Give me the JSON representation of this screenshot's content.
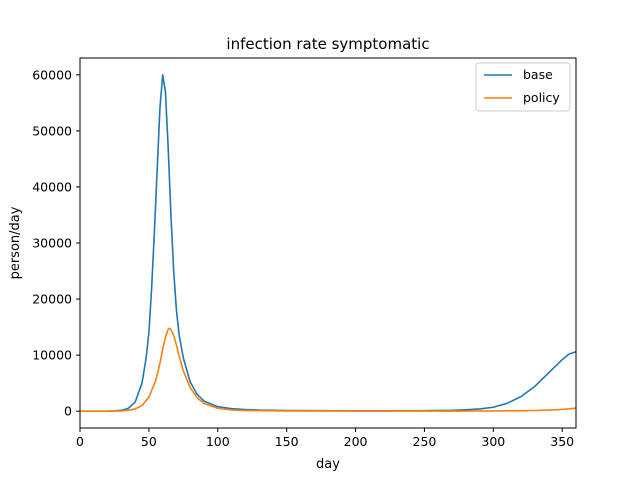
{
  "chart_data": {
    "type": "line",
    "title": "infection rate symptomatic",
    "xlabel": "day",
    "ylabel": "person/day",
    "xlim": [
      0,
      360
    ],
    "ylim": [
      -3000,
      63000
    ],
    "xticks": [
      0,
      50,
      100,
      150,
      200,
      250,
      300,
      350
    ],
    "yticks": [
      0,
      10000,
      20000,
      30000,
      40000,
      50000,
      60000
    ],
    "grid": false,
    "legend_position": "top-right",
    "series": [
      {
        "name": "base",
        "color": "#1f77b4",
        "points": [
          [
            0,
            0
          ],
          [
            10,
            0
          ],
          [
            20,
            10
          ],
          [
            25,
            40
          ],
          [
            30,
            150
          ],
          [
            35,
            500
          ],
          [
            40,
            1600
          ],
          [
            45,
            5000
          ],
          [
            48,
            9500
          ],
          [
            50,
            14000
          ],
          [
            52,
            22000
          ],
          [
            54,
            32000
          ],
          [
            56,
            43000
          ],
          [
            58,
            54000
          ],
          [
            60,
            60000
          ],
          [
            62,
            57000
          ],
          [
            64,
            47000
          ],
          [
            66,
            35000
          ],
          [
            68,
            25000
          ],
          [
            70,
            18000
          ],
          [
            72,
            13500
          ],
          [
            75,
            9500
          ],
          [
            80,
            5200
          ],
          [
            85,
            3000
          ],
          [
            90,
            1800
          ],
          [
            100,
            800
          ],
          [
            110,
            450
          ],
          [
            120,
            300
          ],
          [
            130,
            200
          ],
          [
            150,
            120
          ],
          [
            200,
            60
          ],
          [
            250,
            80
          ],
          [
            270,
            150
          ],
          [
            280,
            250
          ],
          [
            290,
            400
          ],
          [
            300,
            700
          ],
          [
            310,
            1400
          ],
          [
            320,
            2600
          ],
          [
            330,
            4400
          ],
          [
            340,
            6800
          ],
          [
            350,
            9200
          ],
          [
            355,
            10200
          ],
          [
            360,
            10600
          ]
        ]
      },
      {
        "name": "policy",
        "color": "#ff7f0e",
        "points": [
          [
            0,
            0
          ],
          [
            10,
            0
          ],
          [
            20,
            5
          ],
          [
            30,
            50
          ],
          [
            35,
            150
          ],
          [
            40,
            400
          ],
          [
            45,
            1000
          ],
          [
            50,
            2500
          ],
          [
            55,
            5500
          ],
          [
            58,
            8500
          ],
          [
            60,
            11000
          ],
          [
            62,
            13200
          ],
          [
            64,
            14600
          ],
          [
            65,
            14800
          ],
          [
            66,
            14600
          ],
          [
            68,
            13500
          ],
          [
            70,
            11800
          ],
          [
            72,
            9800
          ],
          [
            75,
            7200
          ],
          [
            80,
            4200
          ],
          [
            85,
            2400
          ],
          [
            90,
            1400
          ],
          [
            100,
            500
          ],
          [
            110,
            220
          ],
          [
            120,
            120
          ],
          [
            150,
            50
          ],
          [
            200,
            20
          ],
          [
            250,
            15
          ],
          [
            280,
            20
          ],
          [
            300,
            40
          ],
          [
            320,
            80
          ],
          [
            330,
            120
          ],
          [
            340,
            200
          ],
          [
            350,
            320
          ],
          [
            355,
            420
          ],
          [
            360,
            550
          ]
        ]
      }
    ]
  }
}
